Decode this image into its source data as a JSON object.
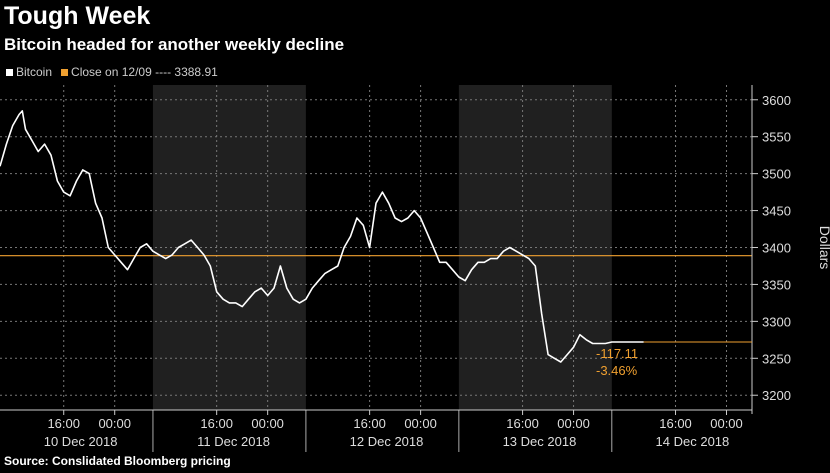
{
  "title": "Tough Week",
  "subtitle": "Bitcoin headed for another weekly decline",
  "legend": {
    "series_label": "Bitcoin",
    "close_label": "Close on 12/09 ---- 3388.91"
  },
  "source": "Source: Conslidated Bloomberg pricing",
  "colors": {
    "series": "#ffffff",
    "close": "#f0a030",
    "shade": "#202020",
    "grid": "#777777"
  },
  "chart_data": {
    "type": "line",
    "ylabel": "Dollars",
    "ylim": [
      3180,
      3620
    ],
    "yticks": [
      3200,
      3250,
      3300,
      3350,
      3400,
      3450,
      3500,
      3550,
      3600
    ],
    "xlim": [
      0,
      118
    ],
    "shaded_days": [
      "11 Dec 2018",
      "13 Dec 2018"
    ],
    "day_labels": [
      {
        "x": 7,
        "label": "10 Dec 2018"
      },
      {
        "x": 31,
        "label": "11 Dec 2018"
      },
      {
        "x": 55,
        "label": "12 Dec 2018"
      },
      {
        "x": 79,
        "label": "13 Dec 2018"
      },
      {
        "x": 103,
        "label": "14 Dec 2018"
      }
    ],
    "time_ticks": [
      {
        "x": 10,
        "label": "16:00"
      },
      {
        "x": 18,
        "label": "00:00"
      },
      {
        "x": 34,
        "label": "16:00"
      },
      {
        "x": 42,
        "label": "00:00"
      },
      {
        "x": 58,
        "label": "16:00"
      },
      {
        "x": 66,
        "label": "00:00"
      },
      {
        "x": 82,
        "label": "16:00"
      },
      {
        "x": 90,
        "label": "00:00"
      },
      {
        "x": 106,
        "label": "16:00"
      },
      {
        "x": 114,
        "label": "00:00"
      }
    ],
    "reference_line": {
      "name": "Close on 12/09",
      "value": 3388.91
    },
    "change_labels": [
      "-117.11",
      "-3.46%"
    ],
    "series": [
      {
        "name": "Bitcoin",
        "x": [
          0,
          1,
          2,
          3,
          3.5,
          4,
          5,
          6,
          7,
          8,
          9,
          10,
          11,
          12,
          13,
          14,
          15,
          16,
          17,
          18,
          19,
          20,
          21,
          22,
          23,
          24,
          25,
          26,
          27,
          28,
          29,
          30,
          31,
          32,
          33,
          34,
          35,
          36,
          37,
          38,
          39,
          40,
          41,
          42,
          43,
          44,
          45,
          46,
          47,
          48,
          49,
          50,
          51,
          52,
          53,
          54,
          55,
          56,
          57,
          58,
          59,
          60,
          61,
          62,
          63,
          64,
          65,
          66,
          67,
          68,
          69,
          70,
          71,
          72,
          73,
          74,
          75,
          76,
          77,
          78,
          79,
          80,
          81,
          82,
          83,
          84,
          85,
          86,
          87,
          88,
          89,
          90,
          91,
          92,
          93,
          94,
          95,
          96,
          97,
          98,
          99,
          100,
          101
        ],
        "y": [
          3510,
          3540,
          3565,
          3580,
          3585,
          3560,
          3545,
          3530,
          3540,
          3525,
          3490,
          3475,
          3470,
          3490,
          3505,
          3500,
          3460,
          3440,
          3400,
          3390,
          3380,
          3370,
          3385,
          3400,
          3405,
          3395,
          3390,
          3385,
          3390,
          3400,
          3405,
          3410,
          3400,
          3390,
          3375,
          3340,
          3330,
          3325,
          3325,
          3320,
          3330,
          3340,
          3345,
          3335,
          3345,
          3375,
          3345,
          3330,
          3325,
          3330,
          3345,
          3355,
          3365,
          3370,
          3375,
          3400,
          3415,
          3440,
          3430,
          3400,
          3460,
          3475,
          3460,
          3440,
          3435,
          3440,
          3450,
          3440,
          3420,
          3400,
          3380,
          3380,
          3370,
          3360,
          3355,
          3370,
          3380,
          3380,
          3385,
          3385,
          3395,
          3400,
          3395,
          3390,
          3385,
          3375,
          3310,
          3255,
          3250,
          3245,
          3255,
          3265,
          3282,
          3275,
          3270,
          3270,
          3270,
          3272,
          3272,
          3272,
          3272,
          3272,
          3272
        ],
        "x_note": "",
        "last_x": 93
      }
    ]
  }
}
